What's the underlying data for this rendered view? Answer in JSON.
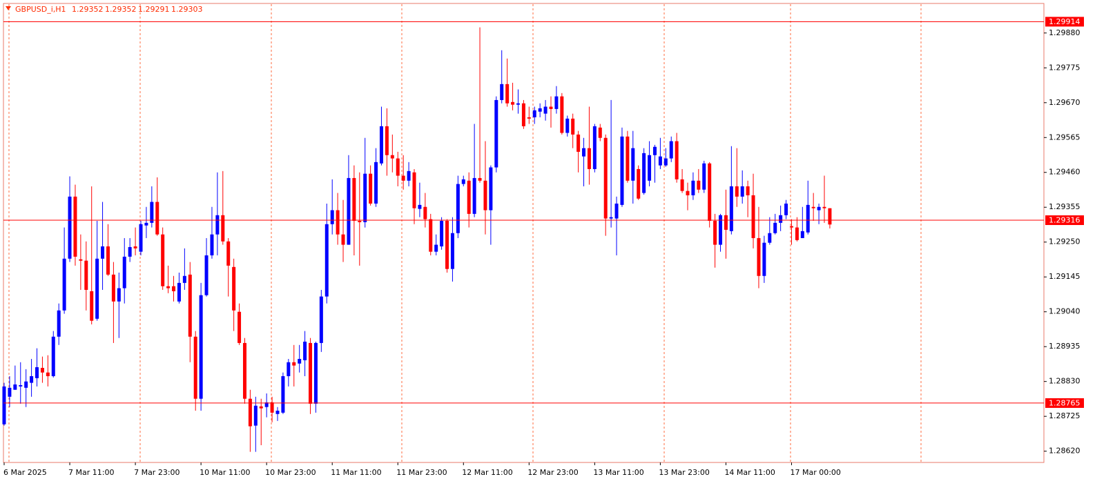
{
  "chart_data": {
    "type": "candlestick",
    "title": "GBPUSD_i,H1",
    "categories": [
      "6 Mar 2025",
      null,
      null,
      null,
      null,
      null,
      null,
      null,
      null,
      null,
      null,
      null,
      "7 Mar 11:00",
      null,
      null,
      null,
      null,
      null,
      null,
      null,
      null,
      null,
      null,
      null,
      "7 Mar 23:00",
      null,
      null,
      null,
      null,
      null,
      null,
      null,
      null,
      null,
      null,
      null,
      "10 Mar 11:00",
      null,
      null,
      null,
      null,
      null,
      null,
      null,
      null,
      null,
      null,
      null,
      "10 Mar 23:00",
      null,
      null,
      null,
      null,
      null,
      null,
      null,
      null,
      null,
      null,
      null,
      "11 Mar 11:00",
      null,
      null,
      null,
      null,
      null,
      null,
      null,
      null,
      null,
      null,
      null,
      "11 Mar 23:00",
      null,
      null,
      null,
      null,
      null,
      null,
      null,
      null,
      null,
      null,
      null,
      "12 Mar 11:00",
      null,
      null,
      null,
      null,
      null,
      null,
      null,
      null,
      null,
      null,
      null,
      "12 Mar 23:00",
      null,
      null,
      null,
      null,
      null,
      null,
      null,
      null,
      null,
      null,
      null,
      "13 Mar 11:00",
      null,
      null,
      null,
      null,
      null,
      null,
      null,
      null,
      null,
      null,
      null,
      "13 Mar 23:00",
      null,
      null,
      null,
      null,
      null,
      null,
      null,
      null,
      null,
      null,
      null,
      "14 Mar 11:00",
      null,
      null,
      null,
      null,
      null,
      null,
      null,
      null,
      null,
      null,
      null,
      "17 Mar 00:00",
      null,
      null,
      null,
      null,
      null,
      null,
      null
    ],
    "open": [
      1.28701,
      1.28784,
      1.28805,
      1.28815,
      1.28811,
      1.28826,
      1.2884,
      1.28871,
      1.28857,
      1.28846,
      1.28965,
      1.29044,
      1.292,
      1.29387,
      1.29198,
      1.29194,
      1.29102,
      1.29019,
      1.292,
      1.29237,
      1.29152,
      1.29071,
      1.29111,
      1.29206,
      1.29237,
      1.29221,
      1.293,
      1.29308,
      1.29371,
      1.29273,
      1.29117,
      1.29117,
      1.29071,
      1.29127,
      1.29152,
      1.28965,
      1.28778,
      1.2909,
      1.2921,
      1.29273,
      1.29331,
      1.29252,
      1.29175,
      1.2904,
      1.28946,
      1.28778,
      1.28697,
      1.28755,
      1.28753,
      1.28767,
      1.28732,
      1.28736,
      1.28846,
      1.28888,
      1.28884,
      1.28894,
      1.28946,
      1.28763,
      1.28946,
      1.29086,
      1.29304,
      1.29346,
      1.29273,
      1.29242,
      1.29443,
      1.29314,
      1.2931,
      1.29456,
      1.29366,
      1.29487,
      1.29599,
      1.29512,
      1.29502,
      1.2945,
      1.29435,
      1.2946,
      1.2935,
      1.29356,
      1.29319,
      1.29221,
      1.29237,
      1.29314,
      1.29169,
      1.29277,
      1.29425,
      1.29435,
      1.29335,
      1.29443,
      1.29435,
      1.29346,
      1.29475,
      1.29678,
      1.29726,
      1.29672,
      1.29664,
      1.29668,
      1.29626,
      1.29626,
      1.29643,
      1.29637,
      1.29658,
      1.29651,
      1.29689,
      1.29579,
      1.29622,
      1.29574,
      1.29508,
      1.29533,
      1.2947,
      1.29595,
      1.29564,
      1.29321,
      1.29321,
      1.29362,
      1.29568,
      1.29435,
      1.2947,
      1.29398,
      1.29435,
      1.29512,
      1.29481,
      1.29481,
      1.29502,
      1.29554,
      1.29439,
      1.29404,
      1.29391,
      1.29435,
      1.29408,
      1.29487,
      1.29314,
      1.29242,
      1.29331,
      1.29283,
      1.29418,
      1.29387,
      1.29418,
      1.29391,
      1.29262,
      1.29148,
      1.29248,
      1.29277,
      1.29308,
      1.29331,
      1.29298,
      1.29294,
      1.29262,
      1.29279,
      1.29356,
      1.29346,
      1.29356,
      1.29352
    ],
    "high": [
      1.28826,
      1.28846,
      1.28878,
      1.28888,
      1.28867,
      1.28898,
      1.2893,
      1.28905,
      1.28909,
      1.28982,
      1.29065,
      1.29294,
      1.29448,
      1.29423,
      1.29273,
      1.29252,
      1.29418,
      1.29314,
      1.29371,
      1.29304,
      1.2919,
      1.29158,
      1.29262,
      1.29262,
      1.29294,
      1.29314,
      1.29356,
      1.29418,
      1.29445,
      1.29294,
      1.29179,
      1.29148,
      1.29158,
      1.29231,
      1.2919,
      1.28982,
      1.29127,
      1.29262,
      1.29356,
      1.2946,
      1.29464,
      1.29262,
      1.292,
      1.29065,
      1.28961,
      1.28805,
      1.28784,
      1.28778,
      1.28794,
      1.28784,
      1.28753,
      1.28857,
      1.28898,
      1.2894,
      1.2894,
      1.28982,
      1.28961,
      1.2895,
      1.29106,
      1.29366,
      1.29439,
      1.29398,
      1.29377,
      1.29512,
      1.29481,
      1.2946,
      1.29564,
      1.29481,
      1.29533,
      1.29658,
      1.29653,
      1.29574,
      1.29522,
      1.29512,
      1.29491,
      1.2947,
      1.29429,
      1.29398,
      1.29335,
      1.29273,
      1.29325,
      1.29319,
      1.29325,
      1.2945,
      1.2945,
      1.2946,
      1.29606,
      1.29897,
      1.29554,
      1.29481,
      1.29689,
      1.29828,
      1.29803,
      1.2973,
      1.2971,
      1.29678,
      1.29658,
      1.29658,
      1.29668,
      1.29678,
      1.29689,
      1.2972,
      1.29699,
      1.29631,
      1.29637,
      1.29585,
      1.29564,
      1.29658,
      1.29606,
      1.29606,
      1.29574,
      1.29678,
      1.29387,
      1.29595,
      1.29585,
      1.29585,
      1.29481,
      1.29533,
      1.29554,
      1.29543,
      1.29564,
      1.29533,
      1.29568,
      1.29579,
      1.2947,
      1.29429,
      1.2946,
      1.2947,
      1.29495,
      1.29491,
      1.29335,
      1.29335,
      1.29408,
      1.29539,
      1.29533,
      1.29466,
      1.29435,
      1.29456,
      1.29356,
      1.29269,
      1.29325,
      1.29335,
      1.2936,
      1.29377,
      1.29319,
      1.29325,
      1.29356,
      1.29435,
      1.29398,
      1.29366,
      1.2945,
      1.29352
    ],
    "low": [
      1.28697,
      1.28753,
      1.28805,
      1.28763,
      1.28753,
      1.28784,
      1.28815,
      1.28826,
      1.28815,
      1.28842,
      1.2894,
      1.29034,
      1.2919,
      1.29179,
      1.29106,
      1.29044,
      1.29002,
      1.29013,
      1.29106,
      1.29148,
      1.28946,
      1.28961,
      1.29065,
      1.2919,
      1.2921,
      1.2921,
      1.29262,
      1.29294,
      1.29269,
      1.29106,
      1.29096,
      1.29071,
      1.29065,
      1.29106,
      1.28888,
      1.28742,
      1.28742,
      1.29086,
      1.292,
      1.2921,
      1.29242,
      1.29086,
      1.28982,
      1.2894,
      1.28763,
      1.28618,
      1.28618,
      1.28638,
      1.28722,
      1.28707,
      1.28711,
      1.28732,
      1.28815,
      1.28815,
      1.28857,
      1.28846,
      1.28732,
      1.28736,
      1.28919,
      1.29065,
      1.29273,
      1.29242,
      1.2919,
      1.29242,
      1.2921,
      1.29179,
      1.29294,
      1.2936,
      1.29356,
      1.29481,
      1.2945,
      1.2946,
      1.29418,
      1.29408,
      1.29418,
      1.29304,
      1.29325,
      1.29294,
      1.2921,
      1.2921,
      1.29227,
      1.29158,
      1.29131,
      1.29262,
      1.29418,
      1.29294,
      1.29325,
      1.29429,
      1.29273,
      1.29242,
      1.2946,
      1.29668,
      1.29658,
      1.29647,
      1.29637,
      1.29591,
      1.29606,
      1.29606,
      1.29626,
      1.29616,
      1.29595,
      1.29637,
      1.29574,
      1.29568,
      1.29533,
      1.2946,
      1.29418,
      1.29423,
      1.2946,
      1.29554,
      1.29269,
      1.29294,
      1.2921,
      1.29356,
      1.29429,
      1.29366,
      1.29377,
      1.29393,
      1.29418,
      1.29429,
      1.2947,
      1.29477,
      1.29491,
      1.29429,
      1.29398,
      1.29346,
      1.29377,
      1.29398,
      1.29398,
      1.29294,
      1.29173,
      1.29221,
      1.292,
      1.29273,
      1.29356,
      1.29366,
      1.29325,
      1.29231,
      1.29111,
      1.29127,
      1.29242,
      1.29273,
      1.29283,
      1.29319,
      1.29242,
      1.29252,
      1.29262,
      1.29273,
      1.29314,
      1.29304,
      1.29308,
      1.29291
    ],
    "close": [
      1.28815,
      1.28811,
      1.28821,
      1.28819,
      1.2883,
      1.28846,
      1.28873,
      1.28857,
      1.28846,
      1.28965,
      1.29044,
      1.292,
      1.29387,
      1.29206,
      1.29194,
      1.29106,
      1.29013,
      1.292,
      1.29237,
      1.29152,
      1.29071,
      1.29111,
      1.29206,
      1.29235,
      1.29231,
      1.29304,
      1.29308,
      1.29371,
      1.29273,
      1.29117,
      1.29111,
      1.29102,
      1.29127,
      1.29148,
      1.28965,
      1.28778,
      1.2909,
      1.2921,
      1.29273,
      1.29331,
      1.29252,
      1.29179,
      1.29044,
      1.28946,
      1.28778,
      1.28695,
      1.28757,
      1.28749,
      1.28767,
      1.28736,
      1.28742,
      1.28846,
      1.28888,
      1.28878,
      1.28898,
      1.2895,
      1.28763,
      1.28946,
      1.29086,
      1.29304,
      1.29346,
      1.29273,
      1.29242,
      1.29443,
      1.29314,
      1.2931,
      1.29456,
      1.29366,
      1.29491,
      1.29599,
      1.29512,
      1.29502,
      1.2945,
      1.29435,
      1.29464,
      1.29352,
      1.29362,
      1.29319,
      1.29221,
      1.29242,
      1.29314,
      1.29169,
      1.29277,
      1.29425,
      1.29439,
      1.29335,
      1.29443,
      1.29435,
      1.29346,
      1.29475,
      1.29678,
      1.29726,
      1.29668,
      1.29664,
      1.29668,
      1.29599,
      1.29622,
      1.29647,
      1.29653,
      1.29658,
      1.29651,
      1.29689,
      1.29579,
      1.29622,
      1.29574,
      1.29522,
      1.29533,
      1.2947,
      1.29599,
      1.29564,
      1.29321,
      1.29325,
      1.29366,
      1.29568,
      1.29435,
      1.29533,
      1.29381,
      1.29518,
      1.29512,
      1.29537,
      1.29508,
      1.29502,
      1.29554,
      1.29439,
      1.29404,
      1.29391,
      1.29435,
      1.29408,
      1.29487,
      1.29314,
      1.29242,
      1.29331,
      1.29287,
      1.29418,
      1.29387,
      1.29418,
      1.29391,
      1.29262,
      1.29148,
      1.29248,
      1.29277,
      1.29308,
      1.29331,
      1.29366,
      1.29294,
      1.29256,
      1.29283,
      1.29362,
      1.29352,
      1.29356,
      1.29352,
      1.29303
    ],
    "up_color": "#0000ff",
    "down_color": "#ff0000",
    "ylim": [
      1.28586,
      1.29969
    ],
    "yticks": [
      {
        "value": 1.2988,
        "label": "1.29880"
      },
      1.29775,
      {
        "value": 1.2967,
        "label": "1.29670"
      },
      1.29565,
      {
        "value": 1.2946,
        "label": "1.29460"
      },
      1.29355,
      {
        "value": 1.2925,
        "label": "1.29250"
      },
      1.29145,
      {
        "value": 1.2904,
        "label": "1.29040"
      },
      1.28935,
      {
        "value": 1.2883,
        "label": "1.28830"
      },
      1.28725,
      {
        "value": 1.2862,
        "label": "1.28620"
      }
    ],
    "levels": [
      1.29914,
      1.29316,
      1.28765
    ],
    "level_color": "#ff0000",
    "grid": true
  }
}
